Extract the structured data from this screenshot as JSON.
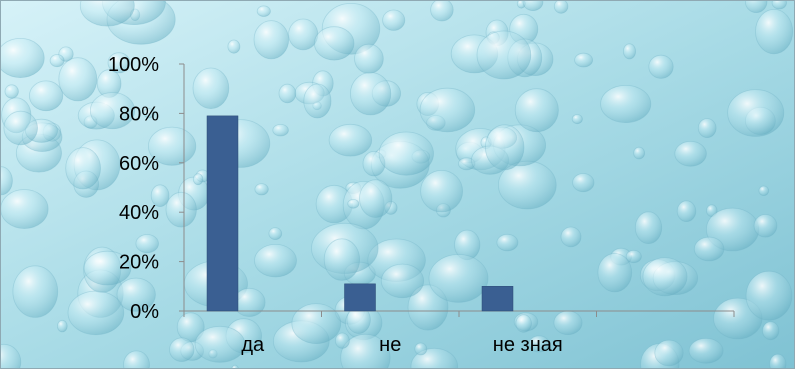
{
  "colors": {
    "bar": "#3a5f92",
    "bar_edge": "#2b4a75",
    "background_base": "#a8dbe6",
    "background_light": "#d6f2f8",
    "background_dark": "#7fc2d3",
    "axis": "#8c8c8c",
    "text": "#000000"
  },
  "chart_data": {
    "type": "bar",
    "categories": [
      "да",
      "не",
      "не зная",
      ""
    ],
    "values": [
      0.79,
      0.11,
      0.1,
      null
    ],
    "ylim": [
      0,
      1
    ],
    "y_ticks": [
      {
        "value": 0,
        "label": "0%"
      },
      {
        "value": 0.2,
        "label": "20%"
      },
      {
        "value": 0.4,
        "label": "40%"
      },
      {
        "value": 0.6,
        "label": "60%"
      },
      {
        "value": 0.8,
        "label": "80%"
      },
      {
        "value": 1,
        "label": "100%"
      }
    ],
    "grid": false,
    "legend": "none"
  }
}
